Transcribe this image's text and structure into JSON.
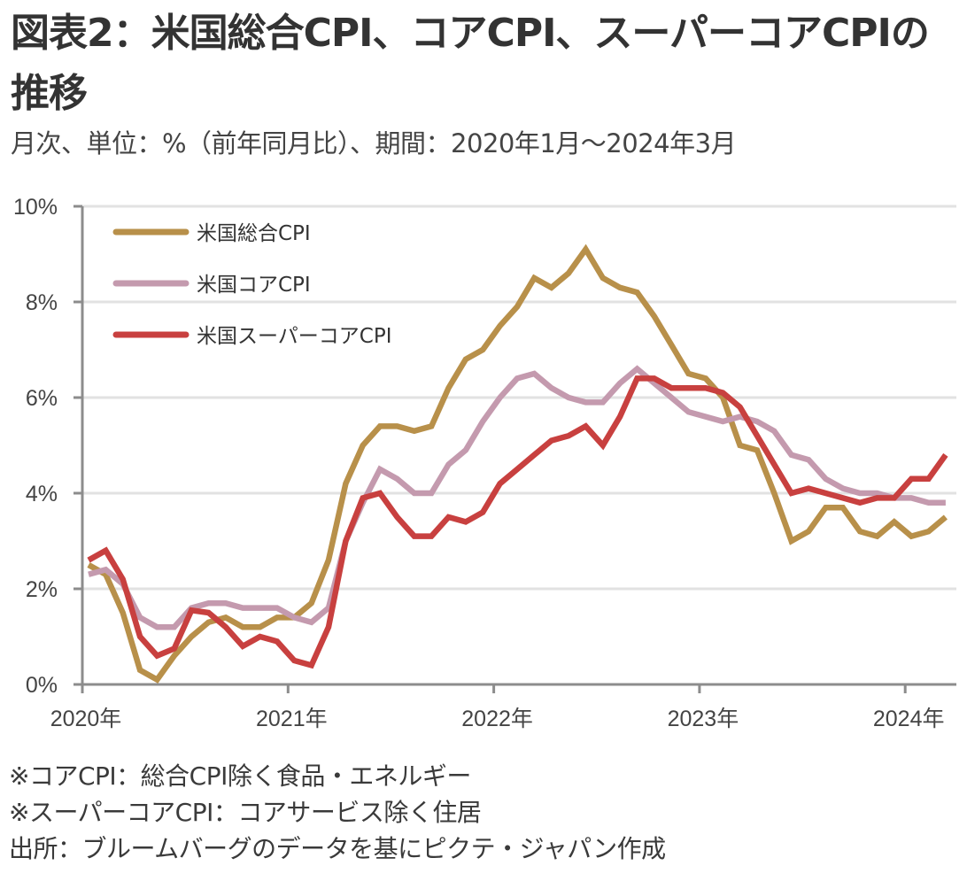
{
  "header": {
    "title": "図表2：米国総合CPI、コアCPI、スーパーコアCPIの推移",
    "subtitle": "月次、単位：%（前年同月比）、期間：2020年1月～2024年3月"
  },
  "footer": {
    "notes": [
      "※コアCPI：総合CPI除く食品・エネルギー",
      "※スーパーコアCPI：コアサービス除く住居",
      "出所：ブルームバーグのデータを基にピクテ・ジャパン作成"
    ]
  },
  "chart_data": {
    "type": "line",
    "title": "図表2：米国総合CPI、コアCPI、スーパーコアCPIの推移",
    "subtitle": "月次、単位：%（前年同月比）、期間：2020年1月～2024年3月",
    "xlabel": "",
    "ylabel": "",
    "x_start": "2020-01",
    "x_end": "2024-03",
    "frequency": "monthly",
    "x_tick_labels": [
      "2020年",
      "2021年",
      "2022年",
      "2023年",
      "2024年"
    ],
    "y_tick_labels": [
      "0%",
      "2%",
      "4%",
      "6%",
      "8%",
      "10%"
    ],
    "y_ticks": [
      0,
      2,
      4,
      6,
      8,
      10
    ],
    "ylim": [
      0,
      10
    ],
    "grid": "horizontal",
    "legend_position": "top-left",
    "series": [
      {
        "name": "米国総合CPI",
        "color": "#B8904A",
        "values": [
          2.5,
          2.3,
          1.5,
          0.3,
          0.1,
          0.6,
          1.0,
          1.3,
          1.4,
          1.2,
          1.2,
          1.4,
          1.4,
          1.7,
          2.6,
          4.2,
          5.0,
          5.4,
          5.4,
          5.3,
          5.4,
          6.2,
          6.8,
          7.0,
          7.5,
          7.9,
          8.5,
          8.3,
          8.6,
          9.1,
          8.5,
          8.3,
          8.2,
          7.7,
          7.1,
          6.5,
          6.4,
          6.0,
          5.0,
          4.9,
          4.0,
          3.0,
          3.2,
          3.7,
          3.7,
          3.2,
          3.1,
          3.4,
          3.1,
          3.2,
          3.5
        ]
      },
      {
        "name": "米国コアCPI",
        "color": "#C49AAE",
        "values": [
          2.3,
          2.4,
          2.1,
          1.4,
          1.2,
          1.2,
          1.6,
          1.7,
          1.7,
          1.6,
          1.6,
          1.6,
          1.4,
          1.3,
          1.6,
          3.0,
          3.8,
          4.5,
          4.3,
          4.0,
          4.0,
          4.6,
          4.9,
          5.5,
          6.0,
          6.4,
          6.5,
          6.2,
          6.0,
          5.9,
          5.9,
          6.3,
          6.6,
          6.3,
          6.0,
          5.7,
          5.6,
          5.5,
          5.6,
          5.5,
          5.3,
          4.8,
          4.7,
          4.3,
          4.1,
          4.0,
          4.0,
          3.9,
          3.9,
          3.8,
          3.8
        ]
      },
      {
        "name": "米国スーパーコアCPI",
        "color": "#C8403F",
        "values": [
          2.6,
          2.8,
          2.2,
          1.0,
          0.6,
          0.75,
          1.55,
          1.5,
          1.2,
          0.8,
          1.0,
          0.9,
          0.5,
          0.4,
          1.2,
          3.0,
          3.9,
          4.0,
          3.5,
          3.1,
          3.1,
          3.5,
          3.4,
          3.6,
          4.2,
          4.5,
          4.8,
          5.1,
          5.2,
          5.4,
          5.0,
          5.6,
          6.4,
          6.4,
          6.2,
          6.2,
          6.2,
          6.1,
          5.8,
          5.2,
          4.6,
          4.0,
          4.1,
          4.0,
          3.9,
          3.8,
          3.9,
          3.9,
          4.3,
          4.3,
          4.8
        ]
      }
    ]
  }
}
